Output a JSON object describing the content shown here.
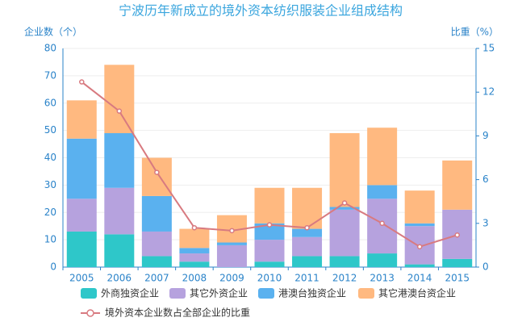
{
  "chart_data": {
    "type": "bar",
    "stacked": true,
    "title": "宁波历年新成立的境外资本纺织服装企业组成结构",
    "y_label": "企业数（个）",
    "y2_label": "比重（%）",
    "categories": [
      "2005",
      "2006",
      "2007",
      "2008",
      "2009",
      "2010",
      "2011",
      "2012",
      "2013",
      "2014",
      "2015"
    ],
    "series": [
      {
        "name": "外商独资企业",
        "color": "#2ec7c9",
        "values": [
          13,
          12,
          4,
          2,
          0,
          2,
          4,
          4,
          5,
          1,
          3
        ]
      },
      {
        "name": "其它外资企业",
        "color": "#b6a2de",
        "values": [
          12,
          17,
          9,
          3,
          8,
          8,
          7,
          17,
          20,
          14,
          18
        ]
      },
      {
        "name": "港澳台独资企业",
        "color": "#5ab1ef",
        "values": [
          22,
          20,
          13,
          2,
          1,
          6,
          3,
          1,
          5,
          1,
          0
        ]
      },
      {
        "name": "其它港澳台资企业",
        "color": "#ffb980",
        "values": [
          14,
          25,
          14,
          7,
          10,
          13,
          15,
          27,
          21,
          12,
          18
        ]
      },
      {
        "name": "境外资本企业数占全部企业的比重",
        "color": "#d87a80",
        "type": "line",
        "axis": "y2",
        "values": [
          12.7,
          10.7,
          6.5,
          2.7,
          2.5,
          2.9,
          2.7,
          4.4,
          3.0,
          1.4,
          2.2
        ]
      }
    ],
    "ylim": [
      0,
      80
    ],
    "yticks": [
      0,
      10,
      20,
      30,
      40,
      50,
      60,
      70,
      80
    ],
    "y2lim": [
      0,
      15
    ],
    "y2ticks": [
      0,
      3,
      6,
      9,
      12,
      15
    ],
    "grid": true
  }
}
